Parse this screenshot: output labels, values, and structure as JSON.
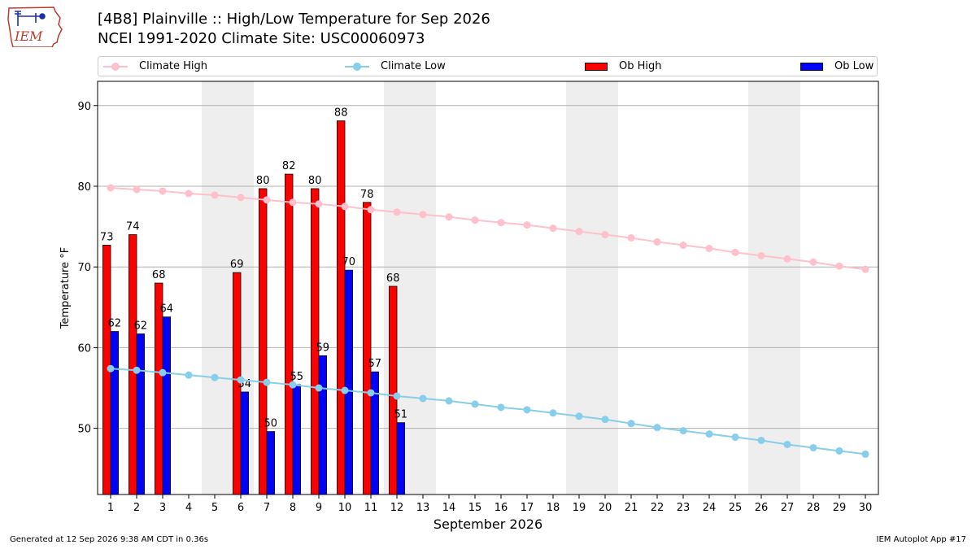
{
  "logo": {
    "text": "IEM"
  },
  "header": {
    "title_line1": "[4B8] Plainville :: High/Low Temperature for Sep 2026",
    "title_line2": "NCEI 1991-2020 Climate Site: USC00060973"
  },
  "legend": {
    "climate_high": "Climate High",
    "climate_low": "Climate Low",
    "ob_high": "Ob High",
    "ob_low": "Ob Low"
  },
  "colors": {
    "climate_high": "#ffc0cb",
    "climate_low": "#87ceeb",
    "ob_high": "#ff0000",
    "ob_low": "#0000ff",
    "weekend_shade": "#eeeeee",
    "grid": "#b0b0b0"
  },
  "footer": {
    "left": "Generated at 12 Sep 2026 9:38 AM CDT in 0.36s",
    "right": "IEM Autoplot App #17"
  },
  "chart_data": {
    "type": "bar",
    "xlabel": "September 2026",
    "ylabel": "Temperature °F",
    "x": [
      1,
      2,
      3,
      4,
      5,
      6,
      7,
      8,
      9,
      10,
      11,
      12,
      13,
      14,
      15,
      16,
      17,
      18,
      19,
      20,
      21,
      22,
      23,
      24,
      25,
      26,
      27,
      28,
      29,
      30
    ],
    "xlim": [
      0.5,
      30.5
    ],
    "ylim": [
      41.8,
      93.0
    ],
    "yticks": [
      50,
      60,
      70,
      80,
      90
    ],
    "grid": "horizontal",
    "legend_position": "top",
    "shaded_days": [
      5,
      6,
      12,
      13,
      19,
      20,
      26,
      27
    ],
    "series": [
      {
        "name": "Ob High",
        "kind": "bar",
        "values": [
          72.7,
          74.0,
          68.0,
          null,
          null,
          69.3,
          79.7,
          81.5,
          79.7,
          88.1,
          78.0,
          67.6,
          null,
          null,
          null,
          null,
          null,
          null,
          null,
          null,
          null,
          null,
          null,
          null,
          null,
          null,
          null,
          null,
          null,
          null
        ],
        "labels": [
          "73",
          "74",
          "68",
          null,
          null,
          "69",
          "80",
          "82",
          "80",
          "88",
          "78",
          "68",
          null,
          null,
          null,
          null,
          null,
          null,
          null,
          null,
          null,
          null,
          null,
          null,
          null,
          null,
          null,
          null,
          null,
          null
        ]
      },
      {
        "name": "Ob Low",
        "kind": "bar",
        "values": [
          62.0,
          61.7,
          63.8,
          null,
          null,
          54.5,
          49.6,
          55.4,
          59.0,
          69.6,
          57.0,
          50.7,
          null,
          null,
          null,
          null,
          null,
          null,
          null,
          null,
          null,
          null,
          null,
          null,
          null,
          null,
          null,
          null,
          null,
          null
        ],
        "labels": [
          "62",
          "62",
          "64",
          null,
          null,
          "54",
          "50",
          "55",
          "59",
          "70",
          "57",
          "51",
          null,
          null,
          null,
          null,
          null,
          null,
          null,
          null,
          null,
          null,
          null,
          null,
          null,
          null,
          null,
          null,
          null,
          null
        ]
      },
      {
        "name": "Climate High",
        "kind": "line",
        "values": [
          79.8,
          79.6,
          79.4,
          79.1,
          78.9,
          78.6,
          78.3,
          78.0,
          77.8,
          77.5,
          77.1,
          76.8,
          76.5,
          76.2,
          75.8,
          75.5,
          75.2,
          74.8,
          74.4,
          74.0,
          73.6,
          73.1,
          72.7,
          72.3,
          71.8,
          71.4,
          71.0,
          70.6,
          70.1,
          69.7
        ]
      },
      {
        "name": "Climate Low",
        "kind": "line",
        "values": [
          57.4,
          57.2,
          56.9,
          56.6,
          56.3,
          56.0,
          55.7,
          55.4,
          55.0,
          54.7,
          54.4,
          54.0,
          53.7,
          53.4,
          53.0,
          52.6,
          52.3,
          51.9,
          51.5,
          51.1,
          50.6,
          50.1,
          49.7,
          49.3,
          48.9,
          48.5,
          48.0,
          47.6,
          47.2,
          46.8
        ]
      }
    ]
  }
}
